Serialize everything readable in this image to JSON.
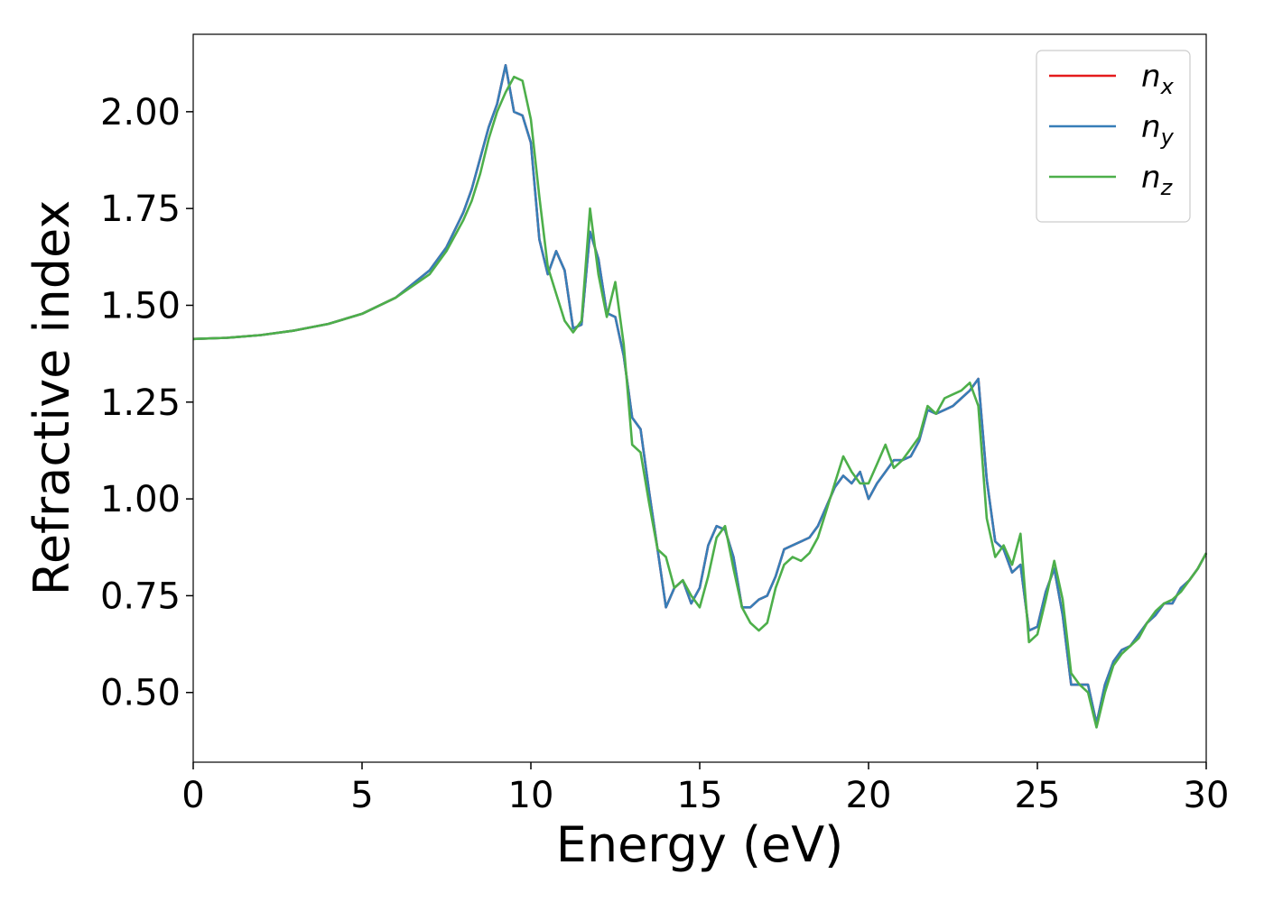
{
  "chart_data": {
    "type": "line",
    "xlabel": "Energy (eV)",
    "ylabel": "Refractive index",
    "x": [
      0,
      1,
      2,
      3,
      4,
      5,
      6,
      7,
      7.5,
      8,
      8.25,
      8.5,
      8.75,
      9,
      9.25,
      9.5,
      9.75,
      10,
      10.25,
      10.5,
      10.75,
      11,
      11.25,
      11.5,
      11.75,
      12,
      12.25,
      12.5,
      12.75,
      13,
      13.25,
      13.5,
      13.75,
      14,
      14.25,
      14.5,
      14.75,
      15,
      15.25,
      15.5,
      15.75,
      16,
      16.25,
      16.5,
      16.75,
      17,
      17.25,
      17.5,
      17.75,
      18,
      18.25,
      18.5,
      18.75,
      19,
      19.25,
      19.5,
      19.75,
      20,
      20.25,
      20.5,
      20.75,
      21,
      21.25,
      21.5,
      21.75,
      22,
      22.25,
      22.5,
      22.75,
      23,
      23.25,
      23.5,
      23.75,
      24,
      24.25,
      24.5,
      24.75,
      25,
      25.25,
      25.5,
      25.75,
      26,
      26.25,
      26.5,
      26.75,
      27,
      27.25,
      27.5,
      27.75,
      28,
      28.25,
      28.5,
      28.75,
      29,
      29.25,
      29.5,
      29.75,
      30
    ],
    "series": [
      {
        "name": "n",
        "name_sub": "x",
        "color": "#e41a1c",
        "values": [
          1.413,
          1.416,
          1.423,
          1.435,
          1.452,
          1.478,
          1.52,
          1.59,
          1.65,
          1.74,
          1.8,
          1.88,
          1.96,
          2.02,
          2.12,
          2.0,
          1.99,
          1.92,
          1.67,
          1.58,
          1.64,
          1.59,
          1.44,
          1.45,
          1.69,
          1.62,
          1.48,
          1.47,
          1.37,
          1.21,
          1.18,
          1.02,
          0.87,
          0.72,
          0.77,
          0.79,
          0.73,
          0.77,
          0.88,
          0.93,
          0.92,
          0.85,
          0.72,
          0.72,
          0.74,
          0.75,
          0.8,
          0.87,
          0.88,
          0.89,
          0.9,
          0.93,
          0.98,
          1.03,
          1.06,
          1.04,
          1.07,
          1.0,
          1.04,
          1.07,
          1.1,
          1.1,
          1.11,
          1.15,
          1.23,
          1.22,
          1.23,
          1.24,
          1.26,
          1.28,
          1.31,
          1.05,
          0.89,
          0.87,
          0.81,
          0.83,
          0.66,
          0.67,
          0.76,
          0.82,
          0.7,
          0.52,
          0.52,
          0.52,
          0.42,
          0.52,
          0.58,
          0.61,
          0.62,
          0.65,
          0.68,
          0.7,
          0.73,
          0.73,
          0.77,
          0.79,
          0.82,
          0.86
        ]
      },
      {
        "name": "n",
        "name_sub": "y",
        "color": "#377eb8",
        "values": [
          1.413,
          1.416,
          1.423,
          1.435,
          1.452,
          1.478,
          1.52,
          1.59,
          1.65,
          1.74,
          1.8,
          1.88,
          1.96,
          2.02,
          2.12,
          2.0,
          1.99,
          1.92,
          1.67,
          1.58,
          1.64,
          1.59,
          1.44,
          1.45,
          1.69,
          1.62,
          1.48,
          1.47,
          1.37,
          1.21,
          1.18,
          1.02,
          0.87,
          0.72,
          0.77,
          0.79,
          0.73,
          0.77,
          0.88,
          0.93,
          0.92,
          0.85,
          0.72,
          0.72,
          0.74,
          0.75,
          0.8,
          0.87,
          0.88,
          0.89,
          0.9,
          0.93,
          0.98,
          1.03,
          1.06,
          1.04,
          1.07,
          1.0,
          1.04,
          1.07,
          1.1,
          1.1,
          1.11,
          1.15,
          1.23,
          1.22,
          1.23,
          1.24,
          1.26,
          1.28,
          1.31,
          1.05,
          0.89,
          0.87,
          0.81,
          0.83,
          0.66,
          0.67,
          0.76,
          0.82,
          0.7,
          0.52,
          0.52,
          0.52,
          0.42,
          0.52,
          0.58,
          0.61,
          0.62,
          0.65,
          0.68,
          0.7,
          0.73,
          0.73,
          0.77,
          0.79,
          0.82,
          0.86
        ]
      },
      {
        "name": "n",
        "name_sub": "z",
        "color": "#4daf4a",
        "values": [
          1.413,
          1.416,
          1.423,
          1.435,
          1.452,
          1.478,
          1.52,
          1.58,
          1.64,
          1.72,
          1.77,
          1.84,
          1.93,
          2.0,
          2.05,
          2.09,
          2.08,
          1.98,
          1.78,
          1.6,
          1.53,
          1.46,
          1.43,
          1.46,
          1.75,
          1.58,
          1.47,
          1.56,
          1.4,
          1.14,
          1.12,
          0.99,
          0.87,
          0.85,
          0.77,
          0.79,
          0.75,
          0.72,
          0.8,
          0.9,
          0.93,
          0.82,
          0.72,
          0.68,
          0.66,
          0.68,
          0.77,
          0.83,
          0.85,
          0.84,
          0.86,
          0.9,
          0.97,
          1.04,
          1.11,
          1.07,
          1.04,
          1.04,
          1.09,
          1.14,
          1.08,
          1.1,
          1.13,
          1.16,
          1.24,
          1.22,
          1.26,
          1.27,
          1.28,
          1.3,
          1.24,
          0.95,
          0.85,
          0.88,
          0.83,
          0.91,
          0.63,
          0.65,
          0.74,
          0.84,
          0.74,
          0.55,
          0.52,
          0.5,
          0.41,
          0.5,
          0.57,
          0.6,
          0.62,
          0.64,
          0.68,
          0.71,
          0.73,
          0.74,
          0.76,
          0.79,
          0.82,
          0.86
        ]
      }
    ],
    "xlim": [
      0,
      30
    ],
    "xticks": [
      0,
      5,
      10,
      15,
      20,
      25,
      30
    ],
    "ylim": [
      0.32,
      2.2
    ],
    "yticks": [
      {
        "value": 0.5,
        "label": "0.50"
      },
      {
        "value": 0.75,
        "label": "0.75"
      },
      {
        "value": 1.0,
        "label": "1.00"
      },
      {
        "value": 1.25,
        "label": "1.25"
      },
      {
        "value": 1.5,
        "label": "1.50"
      },
      {
        "value": 1.75,
        "label": "1.75"
      },
      {
        "value": 2.0,
        "label": "2.00"
      }
    ],
    "legend": "upper right",
    "grid": false
  }
}
